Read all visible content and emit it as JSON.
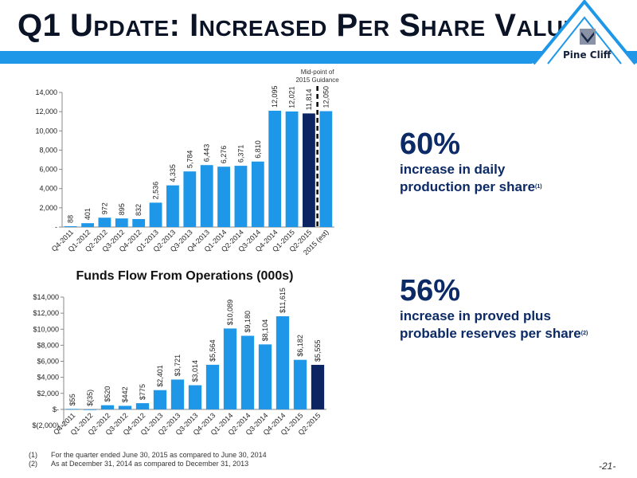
{
  "slide": {
    "title": "Q1 Update: Increased Per Share Value",
    "logo_text": "Pine Cliff",
    "page_number": "-21-"
  },
  "colors": {
    "bar": "#1f97e8",
    "bar_highlight": "#0c2461",
    "title_bar": "#1f97e8",
    "stat_text": "#0b2a66"
  },
  "chart_data": [
    {
      "type": "bar",
      "title": "",
      "categories": [
        "Q4-2011",
        "Q1-2012",
        "Q2-2012",
        "Q3-2012",
        "Q4-2012",
        "Q1-2013",
        "Q2-2013",
        "Q3-2013",
        "Q4-2013",
        "Q1-2014",
        "Q2-2014",
        "Q3-2014",
        "Q4-2014",
        "Q1-2015",
        "Q2-2015",
        "2015 (est)"
      ],
      "values": [
        88,
        401,
        972,
        895,
        832,
        2536,
        4335,
        5784,
        6443,
        6276,
        6371,
        6810,
        12095,
        12021,
        11814,
        12050
      ],
      "value_labels": [
        "88",
        "401",
        "972",
        "895",
        "832",
        "2,536",
        "4,335",
        "5,784",
        "6,443",
        "6,276",
        "6,371",
        "6,810",
        "12,095",
        "12,021",
        "11,814",
        "12,050"
      ],
      "highlight_index": 14,
      "ylim": [
        0,
        14000
      ],
      "yticks": [
        0,
        2000,
        4000,
        6000,
        8000,
        10000,
        12000,
        14000
      ],
      "ytick_labels": [
        "-",
        "2,000",
        "4,000",
        "6,000",
        "8,000",
        "10,000",
        "12,000",
        "14,000"
      ],
      "annotation": {
        "line1": "Mid-point of",
        "line2": "2015 Guidance"
      },
      "grid": false,
      "legend": "none"
    },
    {
      "type": "bar",
      "title": "Funds Flow From Operations (000s)",
      "categories": [
        "Q4-2011",
        "Q1-2012",
        "Q2-2012",
        "Q3-2012",
        "Q4-2012",
        "Q1-2013",
        "Q2-2013",
        "Q3-2013",
        "Q4-2013",
        "Q1-2014",
        "Q2-2014",
        "Q3-2014",
        "Q4-2014",
        "Q1-2015",
        "Q2-2015"
      ],
      "values": [
        55,
        -35,
        520,
        442,
        775,
        2401,
        3721,
        3014,
        5564,
        10089,
        9180,
        8104,
        11615,
        6182,
        5555
      ],
      "value_labels": [
        "$55",
        "$(35)",
        "$520",
        "$442",
        "$775",
        "$2,401",
        "$3,721",
        "$3,014",
        "$5,564",
        "$10,089",
        "$9,180",
        "$8,104",
        "$11,615",
        "$6,182",
        "$5,555"
      ],
      "highlight_index": 14,
      "ylim": [
        -2000,
        14000
      ],
      "yticks": [
        -2000,
        0,
        2000,
        4000,
        6000,
        8000,
        10000,
        12000,
        14000
      ],
      "ytick_labels": [
        "$(2,000)",
        "$-",
        "$2,000",
        "$4,000",
        "$6,000",
        "$8,000",
        "$10,000",
        "$12,000",
        "$14,000"
      ],
      "grid": false,
      "legend": "none"
    }
  ],
  "stats": [
    {
      "big": "60%",
      "line1": "increase in daily",
      "line2": "production per share",
      "note": "(1)"
    },
    {
      "big": "56%",
      "line1": "increase in proved plus",
      "line2": "probable reserves per share",
      "note": "(2)"
    }
  ],
  "footnotes": [
    {
      "num": "(1)",
      "text": "For the quarter ended June 30, 2015 as compared to June 30, 2014"
    },
    {
      "num": "(2)",
      "text": "As at December 31, 2014 as compared to December 31, 2013"
    }
  ]
}
